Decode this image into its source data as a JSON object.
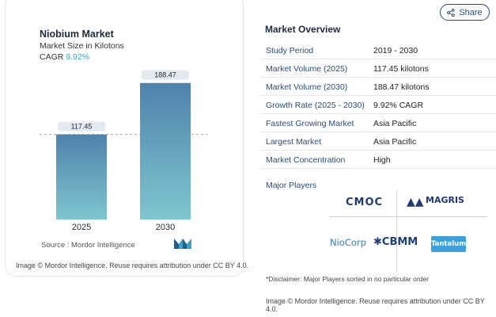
{
  "chart": {
    "title": "Niobium Market",
    "subtitle": "Market Size in Kilotons",
    "cagr_label": "CAGR",
    "cagr_value": "9.92%",
    "source": "Source :  Mordor Intelligence",
    "credit": "Image © Mordor Intelligence. Reuse requires attribution under CC BY 4.0."
  },
  "chart_data": {
    "type": "bar",
    "categories": [
      "2025",
      "2030"
    ],
    "values": [
      117.45,
      188.47
    ],
    "value_labels": [
      "117.45",
      "188.47"
    ],
    "title": "Niobium Market",
    "ylabel": "Market Size in Kilotons",
    "ylim": [
      0,
      210
    ],
    "grid": false,
    "colors": {
      "bar_top": "#4f82ac",
      "bar_bottom": "#7fc6cf",
      "ref_line": "#9aa7b3"
    }
  },
  "share": {
    "label": "Share",
    "icon": "share-icon"
  },
  "overview": {
    "title": "Market Overview",
    "rows": [
      {
        "key": "Study Period",
        "value": "2019 - 2030"
      },
      {
        "key": "Market Volume (2025)",
        "value": "117.45 kilotons"
      },
      {
        "key": "Market Volume (2030)",
        "value": "188.47 kilotons"
      },
      {
        "key": "Growth Rate (2025 - 2030)",
        "value": "9.92% CAGR"
      },
      {
        "key": "Fastest Growing Market",
        "value": "Asia Pacific"
      },
      {
        "key": "Largest Market",
        "value": "Asia Pacific"
      },
      {
        "key": "Market Concentration",
        "value": "High"
      }
    ],
    "major_players_label": "Major Players",
    "players": {
      "cmoc": "CMOC",
      "magris": "MAGRIS",
      "niocorp": "NioCorp",
      "cbmm": "CBMM",
      "tantalum": "Tantalum"
    },
    "disclaimer": "*Disclaimer: Major Players sorted in no particular order",
    "credit": "Image © Mordor Intelligence. Reuse requires attribution under CC BY 4.0."
  },
  "colors": {
    "accent": "#2a4d7a",
    "cagr": "#3fa3c0"
  }
}
